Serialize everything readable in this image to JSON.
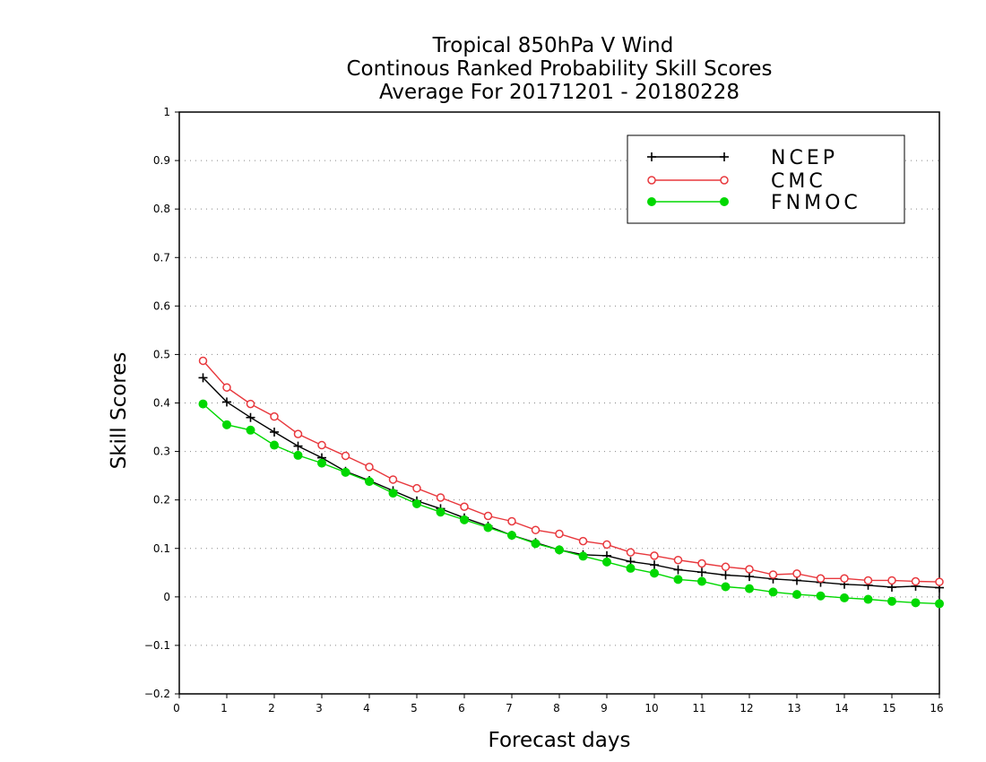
{
  "chart_data": {
    "type": "line",
    "title": [
      "Tropical 850hPa V Wind",
      "Continous Ranked Probability Skill Scores",
      "Average For 20171201 - 20180228"
    ],
    "xlabel": "Forecast days",
    "ylabel": "Skill Scores",
    "xlim": [
      0,
      16
    ],
    "ylim": [
      -0.2,
      1
    ],
    "xticks": [
      0,
      1,
      2,
      3,
      4,
      5,
      6,
      7,
      8,
      9,
      10,
      11,
      12,
      13,
      14,
      15,
      16
    ],
    "yticks": [
      -0.2,
      -0.1,
      0,
      0.1,
      0.2,
      0.3,
      0.4,
      0.5,
      0.6,
      0.7,
      0.8,
      0.9,
      1
    ],
    "ytick_labels": [
      "−0.2",
      "−0.1",
      "0",
      "0.1",
      "0.2",
      "0.3",
      "0.4",
      "0.5",
      "0.6",
      "0.7",
      "0.8",
      "0.9",
      "1"
    ],
    "grid": "horizontal dotted",
    "legend_position": "top-right",
    "x": [
      0.5,
      1,
      1.5,
      2,
      2.5,
      3,
      3.5,
      4,
      4.5,
      5,
      5.5,
      6,
      6.5,
      7,
      7.5,
      8,
      8.5,
      9,
      9.5,
      10,
      10.5,
      11,
      11.5,
      12,
      12.5,
      13,
      13.5,
      14,
      14.5,
      15,
      15.5,
      16
    ],
    "series": [
      {
        "name": "NCEP",
        "color": "#000000",
        "marker": "plus",
        "values": [
          0.452,
          0.402,
          0.37,
          0.34,
          0.311,
          0.287,
          0.259,
          0.24,
          0.219,
          0.198,
          0.182,
          0.163,
          0.146,
          0.127,
          0.112,
          0.097,
          0.087,
          0.085,
          0.073,
          0.066,
          0.056,
          0.051,
          0.045,
          0.042,
          0.037,
          0.034,
          0.03,
          0.026,
          0.024,
          0.02,
          0.022,
          0.019
        ]
      },
      {
        "name": "CMC",
        "color": "#e8383d",
        "marker": "open-circle",
        "values": [
          0.487,
          0.432,
          0.398,
          0.372,
          0.336,
          0.313,
          0.291,
          0.268,
          0.242,
          0.224,
          0.205,
          0.186,
          0.167,
          0.156,
          0.138,
          0.13,
          0.115,
          0.108,
          0.092,
          0.085,
          0.076,
          0.069,
          0.062,
          0.057,
          0.046,
          0.048,
          0.038,
          0.038,
          0.034,
          0.034,
          0.032,
          0.031
        ]
      },
      {
        "name": "FNMOC",
        "color": "#00d800",
        "marker": "filled-circle",
        "values": [
          0.398,
          0.355,
          0.344,
          0.313,
          0.292,
          0.276,
          0.257,
          0.238,
          0.214,
          0.192,
          0.175,
          0.159,
          0.143,
          0.127,
          0.11,
          0.097,
          0.084,
          0.072,
          0.059,
          0.049,
          0.036,
          0.032,
          0.021,
          0.017,
          0.01,
          0.005,
          0.002,
          -0.002,
          -0.005,
          -0.009,
          -0.012,
          -0.014
        ]
      }
    ]
  }
}
